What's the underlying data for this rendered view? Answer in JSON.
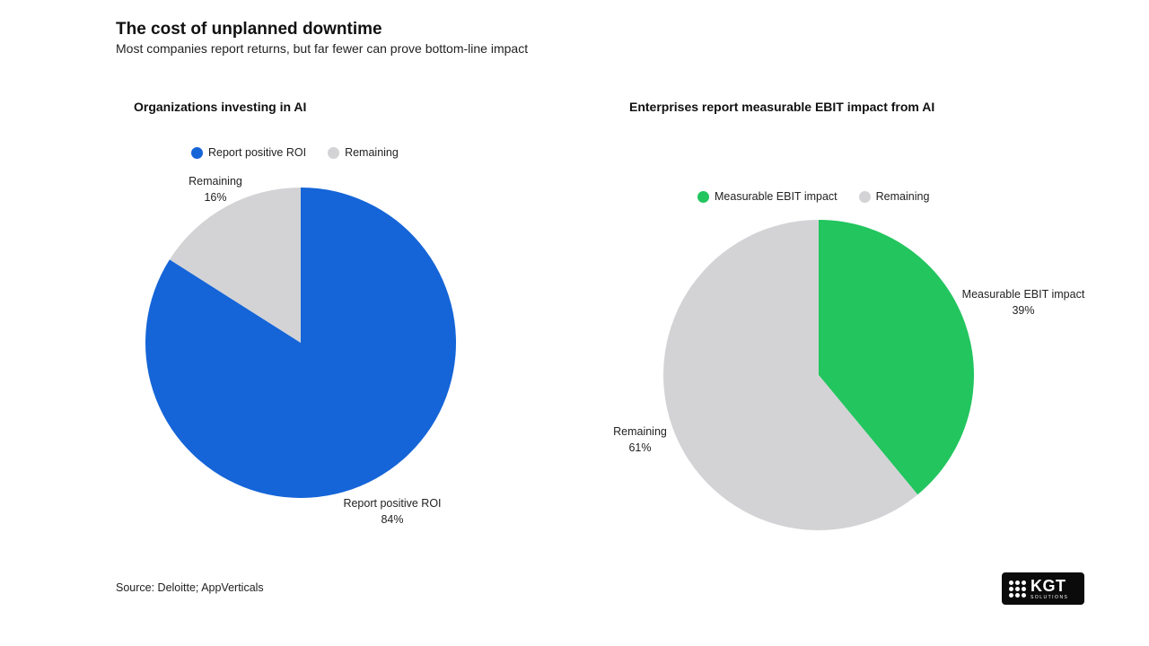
{
  "header": {
    "title": "The cost of unplanned downtime",
    "subtitle": "Most companies report returns, but far fewer can prove bottom-line impact"
  },
  "chart_data": [
    {
      "type": "pie",
      "title": "Organizations investing in AI",
      "legend_placement": "top",
      "slices": [
        {
          "label": "Report positive ROI",
          "value": 84,
          "display": "84%",
          "color": "#1565d8"
        },
        {
          "label": "Remaining",
          "value": 16,
          "display": "16%",
          "color": "#d3d3d6"
        }
      ]
    },
    {
      "type": "pie",
      "title": "Enterprises report measurable EBIT impact from AI",
      "legend_placement": "top",
      "slices": [
        {
          "label": "Measurable EBIT impact",
          "value": 39,
          "display": "39%",
          "color": "#22c55e"
        },
        {
          "label": "Remaining",
          "value": 61,
          "display": "61%",
          "color": "#d3d3d6"
        }
      ]
    }
  ],
  "footer": {
    "source": "Source: Deloitte; AppVerticals"
  },
  "logo": {
    "main": "KGT",
    "sub": "SOLUTIONS",
    "icon": "dot-grid-icon"
  }
}
